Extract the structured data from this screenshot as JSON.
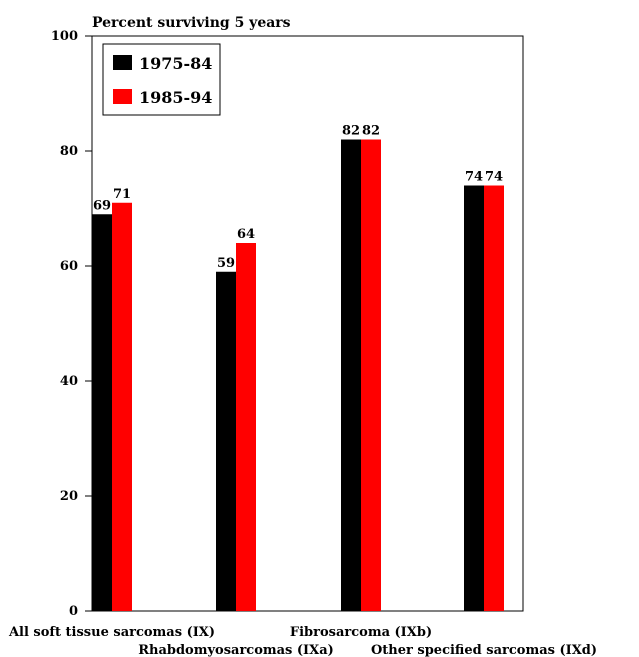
{
  "chart_data": {
    "type": "bar",
    "title": "Percent surviving 5 years",
    "xlabel": "",
    "ylabel": "",
    "categories": [
      "All soft tissue sarcomas (IX)",
      "Rhabdomyosarcomas (IXa)",
      "Fibrosarcoma (IXb)",
      "Other specified sarcomas (IXd)"
    ],
    "series": [
      {
        "name": "1975-84",
        "color": "#000000",
        "values": [
          69,
          59,
          82,
          74
        ]
      },
      {
        "name": "1985-94",
        "color": "#ff0000",
        "values": [
          71,
          64,
          82,
          74
        ]
      }
    ],
    "ylim": [
      0,
      100
    ],
    "yticks": [
      0,
      20,
      40,
      60,
      80,
      100
    ],
    "grid": false,
    "legend_position": "top-left",
    "data_labels": true
  }
}
